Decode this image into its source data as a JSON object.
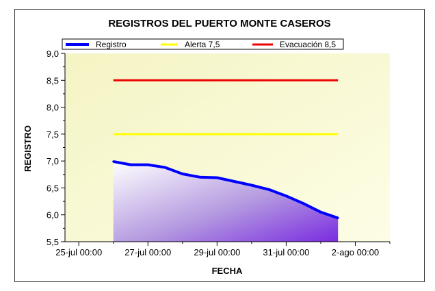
{
  "chart_data": {
    "type": "area",
    "title": "REGISTROS DEL PUERTO MONTE CASEROS",
    "xlabel": "FECHA",
    "ylabel": "REGISTRO",
    "ylim": [
      5.5,
      9.0
    ],
    "yticks": [
      "5,5",
      "6,0",
      "6,5",
      "7,0",
      "7,5",
      "8,0",
      "8,5",
      "9,0"
    ],
    "xticks": [
      "25-jul 00:00",
      "27-jul 00:00",
      "29-jul 00:00",
      "31-jul 00:00",
      "2-ago 00:00"
    ],
    "legend_position": "top",
    "grid": false,
    "series": [
      {
        "name": "Registro",
        "color": "#0000ff",
        "fill": "gradient white-to-violet",
        "x": [
          26.0,
          26.5,
          27.0,
          27.5,
          28.0,
          28.5,
          29.0,
          29.5,
          30.0,
          30.5,
          31.0,
          31.5,
          32.0,
          32.5
        ],
        "values": [
          6.99,
          6.93,
          6.93,
          6.88,
          6.76,
          6.7,
          6.69,
          6.62,
          6.55,
          6.47,
          6.35,
          6.21,
          6.05,
          5.94
        ]
      },
      {
        "name": "Alerta 7,5",
        "color": "#ffff00",
        "x": [
          26.0,
          32.5
        ],
        "values": [
          7.5,
          7.5
        ]
      },
      {
        "name": "Evacuación 8,5",
        "color": "#ee0000",
        "x": [
          26.0,
          32.5
        ],
        "values": [
          8.5,
          8.5
        ]
      }
    ]
  }
}
